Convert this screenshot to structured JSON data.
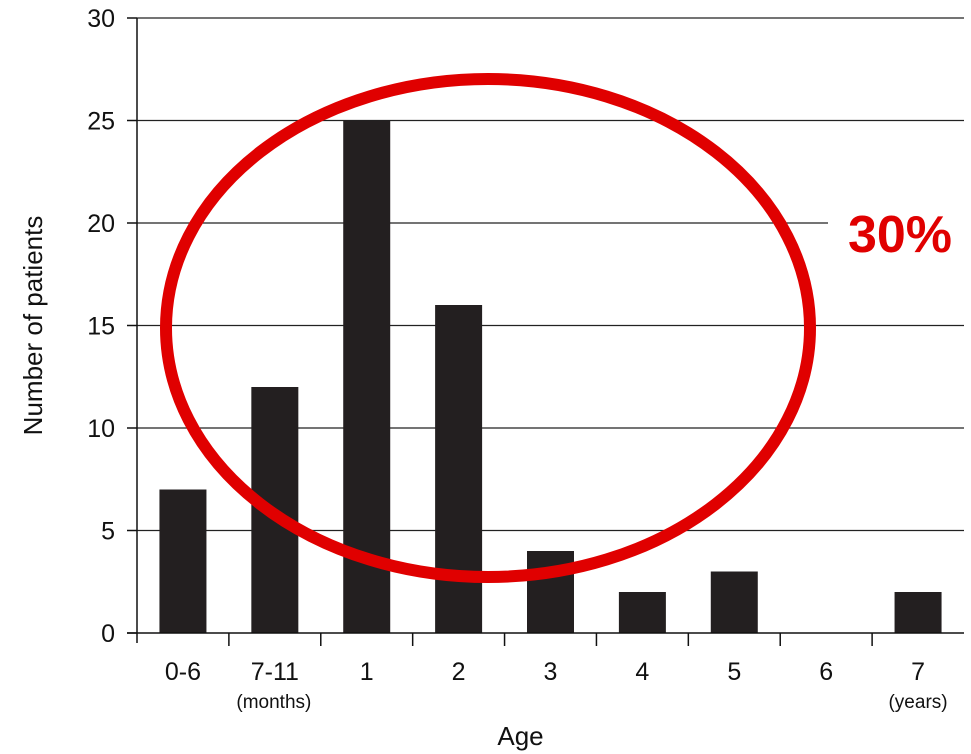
{
  "chart_data": {
    "type": "bar",
    "title": "",
    "xlabel": "Age",
    "ylabel": "Number of patients",
    "categories": [
      "0-6",
      "7-11",
      "1",
      "2",
      "3",
      "4",
      "5",
      "6",
      "7"
    ],
    "values": [
      7,
      12,
      25,
      16,
      4,
      2,
      3,
      0,
      2
    ],
    "ylim": [
      0,
      30
    ],
    "yticks": [
      0,
      5,
      10,
      15,
      20,
      25,
      30
    ],
    "grid": "horizontal",
    "legend": "none",
    "category_notes": {
      "months": "(months)",
      "years": "(years)"
    },
    "annotation": {
      "text": "30%",
      "color": "#e00000",
      "highlight": "red ellipse circling categories 7-11, 1, 2 and 3"
    },
    "colors": {
      "bar": "#231f20",
      "axis": "#111111",
      "grid": "#222222",
      "highlight": "#e00000"
    }
  }
}
